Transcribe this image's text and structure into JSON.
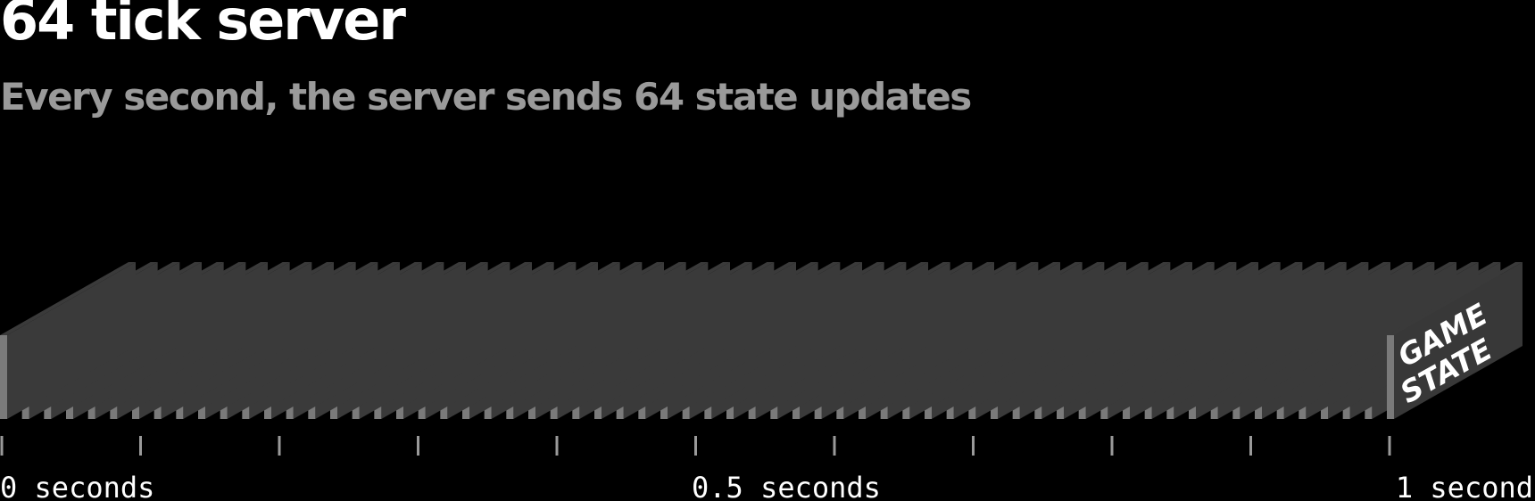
{
  "header": {
    "title": "64 tick server",
    "subtitle": "Every second, the server sends 64 state updates"
  },
  "diagram": {
    "update_count": 64,
    "final_update_label_line1": "GAME",
    "final_update_label_line2": "STATE",
    "axis": {
      "tick_count": 11,
      "labels": [
        {
          "text": "0 seconds",
          "value": 0
        },
        {
          "text": "0.5 seconds",
          "value": 0.5
        },
        {
          "text": "1 second",
          "value": 1
        }
      ]
    },
    "colors": {
      "background": "#000000",
      "slice_front": "#7a7a7a",
      "slice_top": "#3a3a3a",
      "final_block_face": "#383838",
      "axis_ticks": "#9a9a9a",
      "label_text": "#ffffff",
      "subtitle_text": "#9a9a9a"
    }
  }
}
